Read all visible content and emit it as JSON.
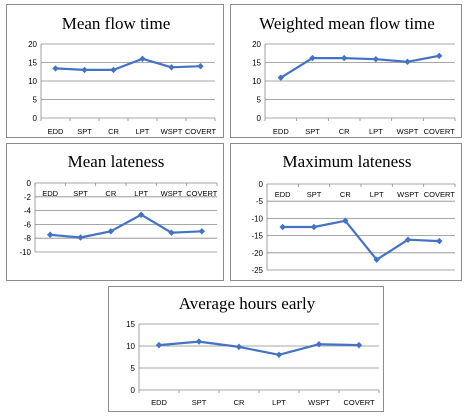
{
  "chart_data": [
    {
      "type": "line",
      "title": "Mean flow time",
      "categories": [
        "EDD",
        "SPT",
        "CR",
        "LPT",
        "WSPT",
        "COVERT"
      ],
      "series": [
        {
          "values": [
            13.4,
            13.0,
            13.0,
            16.0,
            13.7,
            14.0
          ]
        }
      ],
      "ylim": [
        0,
        20
      ],
      "yticks": [
        "0",
        "5",
        "10",
        "15",
        "20"
      ],
      "grid": true,
      "x_axis_at": "bottom",
      "color": "#4472c4"
    },
    {
      "type": "line",
      "title": "Weighted mean flow time",
      "categories": [
        "EDD",
        "SPT",
        "CR",
        "LPT",
        "WSPT",
        "COVERT"
      ],
      "series": [
        {
          "values": [
            10.9,
            16.2,
            16.2,
            15.9,
            15.2,
            16.8
          ]
        }
      ],
      "ylim": [
        0,
        20
      ],
      "yticks": [
        "0",
        "5",
        "10",
        "15",
        "20"
      ],
      "grid": true,
      "x_axis_at": "bottom",
      "color": "#4472c4"
    },
    {
      "type": "line",
      "title": "Mean lateness",
      "categories": [
        "EDD",
        "SPT",
        "CR",
        "LPT",
        "WSPT",
        "COVERT"
      ],
      "series": [
        {
          "values": [
            -7.5,
            -7.9,
            -7.0,
            -4.6,
            -7.2,
            -7.0
          ]
        }
      ],
      "ylim": [
        -10,
        0
      ],
      "yticks": [
        "-10",
        "-8",
        "-6",
        "-4",
        "-2",
        "0"
      ],
      "grid": true,
      "x_axis_at": "top",
      "color": "#4472c4"
    },
    {
      "type": "line",
      "title": "Maximum lateness",
      "categories": [
        "EDD",
        "SPT",
        "CR",
        "LPT",
        "WSPT",
        "COVERT"
      ],
      "series": [
        {
          "values": [
            -12.5,
            -12.5,
            -10.7,
            -22.0,
            -16.2,
            -16.6
          ]
        }
      ],
      "ylim": [
        -25,
        0
      ],
      "yticks": [
        "-25",
        "-20",
        "-15",
        "-10",
        "-5",
        "0"
      ],
      "grid": true,
      "x_axis_at": "top",
      "color": "#4472c4"
    },
    {
      "type": "line",
      "title": "Average hours early",
      "categories": [
        "EDD",
        "SPT",
        "CR",
        "LPT",
        "WSPT",
        "COVERT"
      ],
      "series": [
        {
          "values": [
            10.2,
            11.0,
            9.8,
            8.0,
            10.4,
            10.2
          ]
        }
      ],
      "ylim": [
        0,
        15
      ],
      "yticks": [
        "0",
        "5",
        "10",
        "15"
      ],
      "grid": true,
      "x_axis_at": "bottom",
      "color": "#4472c4"
    }
  ]
}
